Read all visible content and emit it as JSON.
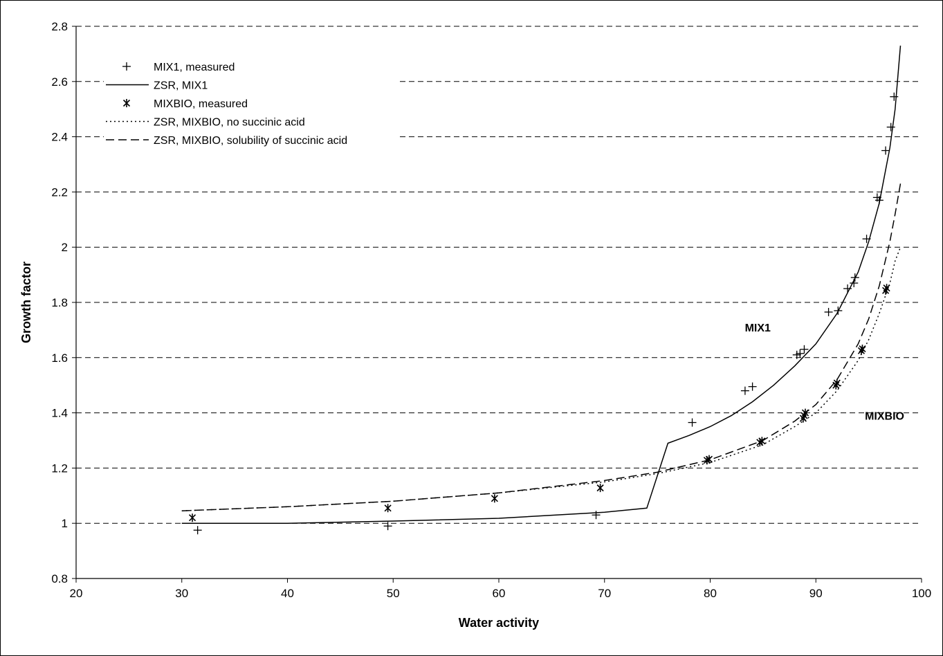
{
  "chart_data": {
    "type": "scatter",
    "xlabel": "Water activity",
    "ylabel": "Growth factor",
    "xlim": [
      20,
      100
    ],
    "ylim": [
      0.8,
      2.8
    ],
    "x_ticks": [
      20,
      30,
      40,
      50,
      60,
      70,
      80,
      90,
      100
    ],
    "y_ticks": [
      0.8,
      1,
      1.2,
      1.4,
      1.6,
      1.8,
      2,
      2.2,
      2.4,
      2.6,
      2.8
    ],
    "grid": "horizontal dashed",
    "legend_position": "top-left",
    "annotations": [
      {
        "text": "MIX1",
        "x": 84.5,
        "y": 1.71
      },
      {
        "text": "MIXBIO",
        "x": 96.5,
        "y": 1.39
      }
    ],
    "series": [
      {
        "name": "MIX1, measured",
        "kind": "markers",
        "marker": "plus",
        "points": [
          [
            31.5,
            0.975
          ],
          [
            49.5,
            0.99
          ],
          [
            69.2,
            1.03
          ],
          [
            78.3,
            1.365
          ],
          [
            83.3,
            1.48
          ],
          [
            84.0,
            1.495
          ],
          [
            88.2,
            1.61
          ],
          [
            88.5,
            1.615
          ],
          [
            88.9,
            1.63
          ],
          [
            91.2,
            1.765
          ],
          [
            92.1,
            1.77
          ],
          [
            93.0,
            1.85
          ],
          [
            93.6,
            1.87
          ],
          [
            93.7,
            1.89
          ],
          [
            94.8,
            2.03
          ],
          [
            95.8,
            2.18
          ],
          [
            96.0,
            2.17
          ],
          [
            96.6,
            2.35
          ],
          [
            97.1,
            2.435
          ],
          [
            97.4,
            2.545
          ]
        ]
      },
      {
        "name": "ZSR, MIX1",
        "kind": "line",
        "style": "solid",
        "points": [
          [
            30,
            1.0
          ],
          [
            40,
            1.0
          ],
          [
            50,
            1.008
          ],
          [
            60,
            1.018
          ],
          [
            70,
            1.04
          ],
          [
            74,
            1.055
          ],
          [
            76,
            1.29
          ],
          [
            78,
            1.318
          ],
          [
            80,
            1.35
          ],
          [
            82,
            1.39
          ],
          [
            84,
            1.44
          ],
          [
            86,
            1.5
          ],
          [
            88,
            1.57
          ],
          [
            90,
            1.65
          ],
          [
            92,
            1.76
          ],
          [
            94,
            1.91
          ],
          [
            95,
            2.02
          ],
          [
            96,
            2.16
          ],
          [
            97,
            2.36
          ],
          [
            97.5,
            2.5
          ],
          [
            98,
            2.73
          ]
        ]
      },
      {
        "name": "MIXBIO, measured",
        "kind": "markers",
        "marker": "asterisk",
        "points": [
          [
            31.0,
            1.02
          ],
          [
            49.5,
            1.055
          ],
          [
            59.6,
            1.09
          ],
          [
            69.6,
            1.128
          ],
          [
            79.7,
            1.228
          ],
          [
            79.9,
            1.232
          ],
          [
            84.7,
            1.293
          ],
          [
            84.9,
            1.298
          ],
          [
            88.8,
            1.38
          ],
          [
            88.9,
            1.39
          ],
          [
            89.0,
            1.4
          ],
          [
            91.9,
            1.5
          ],
          [
            92.0,
            1.508
          ],
          [
            94.3,
            1.625
          ],
          [
            94.4,
            1.632
          ],
          [
            96.6,
            1.843
          ],
          [
            96.7,
            1.852
          ]
        ]
      },
      {
        "name": "ZSR, MIXBIO, no succinic acid",
        "kind": "line",
        "style": "dotted",
        "points": [
          [
            30,
            1.045
          ],
          [
            40,
            1.06
          ],
          [
            50,
            1.08
          ],
          [
            60,
            1.11
          ],
          [
            70,
            1.15
          ],
          [
            75,
            1.18
          ],
          [
            80,
            1.22
          ],
          [
            85,
            1.285
          ],
          [
            88,
            1.35
          ],
          [
            90,
            1.4
          ],
          [
            92,
            1.48
          ],
          [
            94,
            1.59
          ],
          [
            95,
            1.665
          ],
          [
            96,
            1.76
          ],
          [
            97,
            1.87
          ],
          [
            97.5,
            1.95
          ],
          [
            98,
            2.0
          ]
        ]
      },
      {
        "name": "ZSR, MIXBIO, solubility of succinic acid",
        "kind": "line",
        "style": "dashed",
        "points": [
          [
            30,
            1.045
          ],
          [
            40,
            1.06
          ],
          [
            50,
            1.08
          ],
          [
            60,
            1.11
          ],
          [
            70,
            1.155
          ],
          [
            75,
            1.185
          ],
          [
            80,
            1.23
          ],
          [
            85,
            1.3
          ],
          [
            88,
            1.37
          ],
          [
            90,
            1.43
          ],
          [
            92,
            1.52
          ],
          [
            94,
            1.65
          ],
          [
            95,
            1.74
          ],
          [
            96,
            1.86
          ],
          [
            97,
            2.02
          ],
          [
            97.5,
            2.12
          ],
          [
            98,
            2.23
          ]
        ]
      }
    ]
  }
}
